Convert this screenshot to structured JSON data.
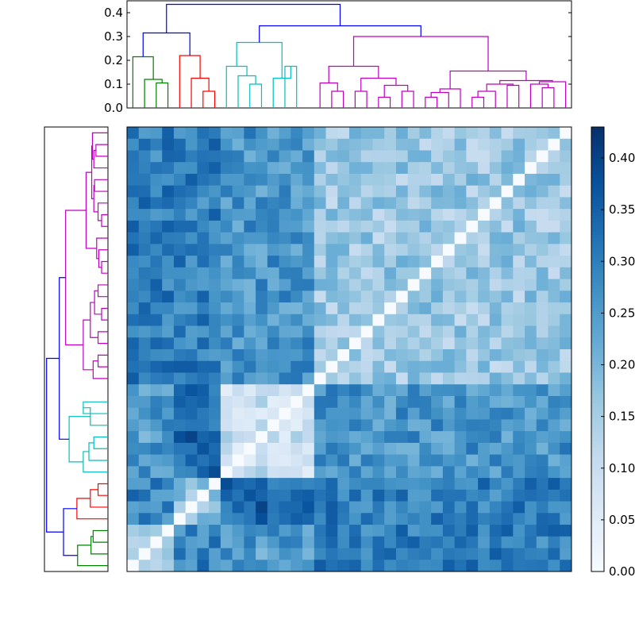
{
  "chart_data": {
    "type": "heatmap",
    "title": "",
    "n": 38,
    "leaf_order_top": [
      0,
      1,
      2,
      3,
      4,
      5,
      6,
      7,
      8,
      9,
      10,
      11,
      12,
      13,
      14,
      15,
      16,
      17,
      18,
      19,
      20,
      21,
      22,
      23,
      24,
      25,
      26,
      27,
      28,
      29,
      30,
      31,
      32,
      33,
      34,
      35,
      36,
      37
    ],
    "leaf_order_left": [
      37,
      36,
      35,
      34,
      33,
      32,
      31,
      30,
      29,
      28,
      27,
      26,
      25,
      24,
      23,
      22,
      21,
      20,
      19,
      18,
      17,
      16,
      15,
      14,
      13,
      12,
      11,
      10,
      9,
      8,
      7,
      6,
      5,
      4,
      3,
      2,
      1,
      0
    ],
    "clusters": [
      {
        "name": "green",
        "color": "#008000",
        "leaves": [
          0,
          1,
          2,
          3
        ]
      },
      {
        "name": "red",
        "color": "#ff0000",
        "leaves": [
          4,
          5,
          6,
          7
        ]
      },
      {
        "name": "cyan",
        "color": "#00bfbf",
        "leaves": [
          8,
          9,
          10,
          11,
          12,
          13,
          14,
          15
        ]
      },
      {
        "name": "magenta",
        "color": "#bf00bf",
        "leaves": [
          16,
          17,
          18,
          19,
          20,
          21,
          22,
          23,
          24,
          25,
          26,
          27,
          28,
          29,
          30,
          31,
          32,
          33,
          34,
          35,
          36,
          37
        ]
      }
    ],
    "link_color_above_threshold": "#0000ff",
    "dendrogram": {
      "ylim": [
        0,
        0.45
      ],
      "yticks": [
        0.0,
        0.1,
        0.2,
        0.3,
        0.4
      ],
      "ytick_labels": [
        "0.0",
        "0.1",
        "0.2",
        "0.3",
        "0.4"
      ],
      "merges": [
        {
          "a": 2,
          "b": 3,
          "h": 0.105,
          "color": "green"
        },
        {
          "a": 1,
          "b": "m0",
          "h": 0.12,
          "color": "green"
        },
        {
          "a": 0,
          "b": "m1",
          "h": 0.215,
          "color": "green"
        },
        {
          "a": 6,
          "b": 7,
          "h": 0.07,
          "color": "red"
        },
        {
          "a": 5,
          "b": "m3",
          "h": 0.125,
          "color": "red"
        },
        {
          "a": 4,
          "b": "m4",
          "h": 0.22,
          "color": "red"
        },
        {
          "a": 10,
          "b": 11,
          "h": 0.1,
          "color": "cyan"
        },
        {
          "a": 9,
          "b": "m6",
          "h": 0.135,
          "color": "cyan"
        },
        {
          "a": 8,
          "b": "m7",
          "h": 0.175,
          "color": "cyan"
        },
        {
          "a": 13,
          "b": 14,
          "h": 0.175,
          "color": "cyan"
        },
        {
          "a": 12,
          "b": "m9",
          "h": 0.125,
          "color": "cyan"
        },
        {
          "a": "m8",
          "b": "m10",
          "h": 0.275,
          "color": "cyan"
        },
        {
          "a": 17,
          "b": 18,
          "h": 0.07,
          "color": "magenta"
        },
        {
          "a": 16,
          "b": "m12",
          "h": 0.105,
          "color": "magenta"
        },
        {
          "a": 19,
          "b": 20,
          "h": 0.07,
          "color": "magenta"
        },
        {
          "a": 21,
          "b": 22,
          "h": 0.045,
          "color": "magenta"
        },
        {
          "a": 23,
          "b": 24,
          "h": 0.07,
          "color": "magenta"
        },
        {
          "a": "m15",
          "b": "m16",
          "h": 0.095,
          "color": "magenta"
        },
        {
          "a": "m14",
          "b": "m17",
          "h": 0.125,
          "color": "magenta"
        },
        {
          "a": "m13",
          "b": "m18",
          "h": 0.175,
          "color": "magenta"
        },
        {
          "a": 25,
          "b": 26,
          "h": 0.045,
          "color": "magenta"
        },
        {
          "a": "m20",
          "b": 27,
          "h": 0.065,
          "color": "magenta"
        },
        {
          "a": 28,
          "b": "m21",
          "h": 0.08,
          "color": "magenta"
        },
        {
          "a": 29,
          "b": 30,
          "h": 0.045,
          "color": "magenta"
        },
        {
          "a": "m23",
          "b": 31,
          "h": 0.07,
          "color": "magenta"
        },
        {
          "a": 32,
          "b": 33,
          "h": 0.095,
          "color": "magenta"
        },
        {
          "a": 35,
          "b": 36,
          "h": 0.085,
          "color": "magenta"
        },
        {
          "a": 34,
          "b": "m26",
          "h": 0.1,
          "color": "magenta"
        },
        {
          "a": "m27",
          "b": 37,
          "h": 0.11,
          "color": "magenta"
        },
        {
          "a": "m24",
          "b": "m25",
          "h": 0.1,
          "color": "magenta"
        },
        {
          "a": "m28",
          "b": "m29",
          "h": 0.115,
          "color": "magenta"
        },
        {
          "a": "m22",
          "b": "m30",
          "h": 0.155,
          "color": "magenta"
        },
        {
          "a": "m19",
          "b": "m31",
          "h": 0.3,
          "color": "magenta"
        },
        {
          "a": "m2",
          "b": "m5",
          "h": 0.315,
          "color": "above"
        },
        {
          "a": "m11",
          "b": "m32",
          "h": 0.345,
          "color": "above"
        },
        {
          "a": "m33",
          "b": "m34",
          "h": 0.435,
          "color": "above"
        }
      ]
    },
    "heatmap": {
      "cmap": "Blues",
      "vmin": 0.0,
      "vmax": 0.43,
      "group_baseline": [
        [
          0.18,
          0.29,
          0.25,
          0.3
        ],
        [
          0.29,
          0.18,
          0.34,
          0.3
        ],
        [
          0.25,
          0.34,
          0.1,
          0.26
        ],
        [
          0.3,
          0.3,
          0.26,
          0.16
        ]
      ]
    },
    "colorbar": {
      "ticks": [
        0.0,
        0.05,
        0.1,
        0.15,
        0.2,
        0.25,
        0.3,
        0.35,
        0.4
      ],
      "tick_labels": [
        "0.00",
        "0.05",
        "0.10",
        "0.15",
        "0.20",
        "0.25",
        "0.30",
        "0.35",
        "0.40"
      ]
    }
  }
}
